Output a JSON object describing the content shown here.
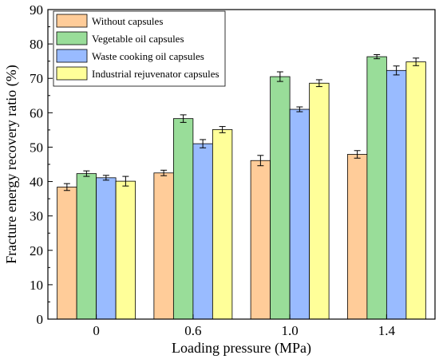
{
  "chart_data": {
    "type": "bar",
    "title": "",
    "xlabel": "Loading pressure (MPa)",
    "ylabel": "Fracture energy recovery ratio (%)",
    "ylim": [
      0,
      90
    ],
    "yticks": [
      0,
      10,
      20,
      30,
      40,
      50,
      60,
      70,
      80,
      90
    ],
    "categories": [
      "0",
      "0.6",
      "1.0",
      "1.4"
    ],
    "legend_position": "top-left",
    "grid": false,
    "series": [
      {
        "name": "Without capsules",
        "color": "#FFCC99",
        "values": [
          38.4,
          42.5,
          46.1,
          47.9
        ],
        "errors": [
          1.0,
          0.8,
          1.5,
          1.1
        ]
      },
      {
        "name": "Vegetable oil capsules",
        "color": "#99DD99",
        "values": [
          42.3,
          58.3,
          70.5,
          76.3
        ],
        "errors": [
          0.8,
          1.1,
          1.4,
          0.6
        ]
      },
      {
        "name": "Waste cooking oil capsules",
        "color": "#99BBFF",
        "values": [
          41.1,
          51.0,
          61.0,
          72.3
        ],
        "errors": [
          0.7,
          1.2,
          0.7,
          1.3
        ]
      },
      {
        "name": "Industrial rejuvenator capsules",
        "color": "#FFFF99",
        "values": [
          40.1,
          55.1,
          68.6,
          74.8
        ],
        "errors": [
          1.4,
          0.9,
          1.0,
          1.1
        ]
      }
    ]
  }
}
